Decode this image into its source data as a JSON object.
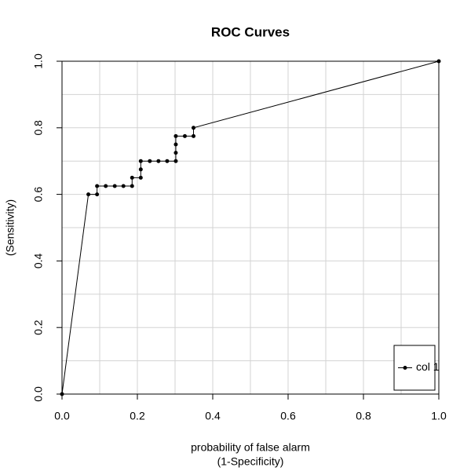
{
  "chart_data": {
    "type": "line",
    "title": "ROC Curves",
    "xlabel": [
      "probability of false alarm",
      "(1-Specificity)"
    ],
    "ylabel": "(Sensitivity)",
    "x": [
      0,
      0.07,
      0.093,
      0.093,
      0.116,
      0.14,
      0.163,
      0.186,
      0.186,
      0.209,
      0.209,
      0.209,
      0.233,
      0.256,
      0.279,
      0.302,
      0.302,
      0.302,
      0.302,
      0.326,
      0.349,
      0.349,
      1
    ],
    "series": [
      {
        "name": "col 1",
        "color": "#000000",
        "values": [
          0,
          0.6,
          0.6,
          0.625,
          0.625,
          0.625,
          0.625,
          0.625,
          0.65,
          0.65,
          0.675,
          0.7,
          0.7,
          0.7,
          0.7,
          0.7,
          0.725,
          0.75,
          0.775,
          0.775,
          0.775,
          0.8,
          1
        ]
      }
    ],
    "xlim": [
      0,
      1
    ],
    "ylim": [
      0,
      1
    ],
    "xticks": [
      {
        "value": 0,
        "label": "0.0"
      },
      0.2,
      0.4,
      0.6,
      0.8,
      {
        "value": 1,
        "label": "1.0"
      }
    ],
    "yticks": [
      {
        "value": 0,
        "label": "0.0"
      },
      0.2,
      0.4,
      0.6,
      0.8,
      {
        "value": 1,
        "label": "1.0"
      }
    ],
    "grid_step": 0.1,
    "grid": true,
    "legend": "bottom-right"
  }
}
